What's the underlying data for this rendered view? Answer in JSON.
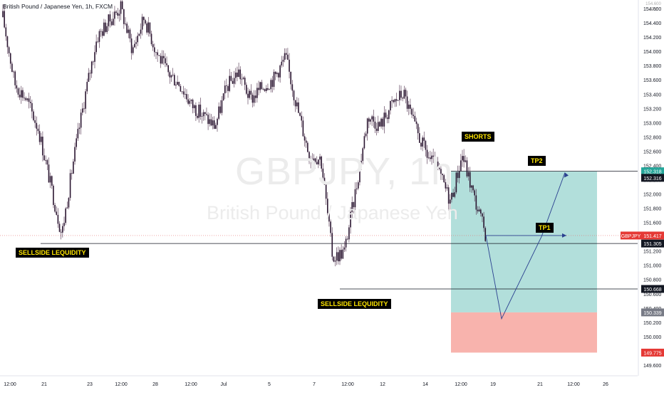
{
  "symbol": {
    "title": "British Pound / Japanese Yen, 1h, FXCM",
    "ccy_price": "154.600",
    "currency": "JPY"
  },
  "watermark": {
    "ticker": "GBPJPY, 1h",
    "name": "British Pound / Japanese Yen"
  },
  "annotations": {
    "sellside_1": "SELLSIDE LEQUIDITY",
    "sellside_2": "SELLSIDE LEQUIDITY",
    "shorts": "SHORTS",
    "tp1": "TP1",
    "tp2": "TP2"
  },
  "colors": {
    "candle": "#2a1530",
    "wick": "#4a2a46",
    "accent_teal": "#26a69a",
    "accent_red": "#e53935",
    "path_blue": "#2a3f8f",
    "profit_zone": "#b2dfdb",
    "loss_zone": "#f8b3ad"
  },
  "chart_data": {
    "type": "candlestick",
    "timeframe": "1h",
    "x_ticks": [
      "12:00",
      "21",
      "23",
      "12:00",
      "28",
      "12:00",
      "Jul",
      "5",
      "7",
      "12:00",
      "12",
      "14",
      "12:00",
      "19",
      "21",
      "12:00",
      "26"
    ],
    "y_ticks": [
      154.6,
      154.4,
      154.2,
      154.0,
      153.8,
      153.6,
      153.4,
      153.2,
      153.0,
      152.8,
      152.6,
      152.4,
      152.2,
      152.0,
      151.8,
      151.6,
      151.4,
      151.2,
      151.0,
      150.8,
      150.6,
      150.4,
      150.2,
      150.0,
      149.8,
      149.6
    ],
    "y_range": [
      149.45,
      154.72
    ],
    "price_path": [
      {
        "x": "12:00",
        "y": 154.48
      },
      {
        "x": "",
        "y": 153.55
      },
      {
        "x": "",
        "y": 153.33
      },
      {
        "x": "",
        "y": 152.92
      },
      {
        "x": "",
        "y": 152.17
      },
      {
        "x": "21",
        "y": 151.43
      },
      {
        "x": "",
        "y": 152.48
      },
      {
        "x": "",
        "y": 153.4
      },
      {
        "x": "",
        "y": 154.2
      },
      {
        "x": "23",
        "y": 154.42
      },
      {
        "x": "",
        "y": 154.62
      },
      {
        "x": "12:00",
        "y": 154.02
      },
      {
        "x": "",
        "y": 154.48
      },
      {
        "x": "",
        "y": 154.0
      },
      {
        "x": "",
        "y": 153.7
      },
      {
        "x": "28",
        "y": 153.55
      },
      {
        "x": "",
        "y": 153.25
      },
      {
        "x": "12:00",
        "y": 153.1
      },
      {
        "x": "",
        "y": 152.95
      },
      {
        "x": "",
        "y": 153.5
      },
      {
        "x": "Jul",
        "y": 153.72
      },
      {
        "x": "",
        "y": 153.32
      },
      {
        "x": "",
        "y": 153.5
      },
      {
        "x": "5",
        "y": 153.62
      },
      {
        "x": "",
        "y": 153.92
      },
      {
        "x": "",
        "y": 153.2
      },
      {
        "x": "",
        "y": 152.55
      },
      {
        "x": "7",
        "y": 152.5
      },
      {
        "x": "",
        "y": 151.1
      },
      {
        "x": "12:00",
        "y": 151.2
      },
      {
        "x": "",
        "y": 152.1
      },
      {
        "x": "",
        "y": 153.1
      },
      {
        "x": "12",
        "y": 152.95
      },
      {
        "x": "",
        "y": 153.25
      },
      {
        "x": "",
        "y": 153.42
      },
      {
        "x": "",
        "y": 152.92
      },
      {
        "x": "14",
        "y": 152.55
      },
      {
        "x": "",
        "y": 152.3
      },
      {
        "x": "12:00",
        "y": 151.9
      },
      {
        "x": "",
        "y": 152.55
      },
      {
        "x": "",
        "y": 151.95
      },
      {
        "x": "",
        "y": 151.42
      }
    ],
    "horizontal_levels": [
      {
        "label": "SELLSIDE LEQUIDITY",
        "price": 151.305
      },
      {
        "label": "SELLSIDE LEQUIDITY",
        "price": 150.668
      }
    ],
    "price_labels": [
      {
        "value": "152.318",
        "price": 152.318,
        "color": "#26a69a"
      },
      {
        "value": "152.316",
        "price": 152.316,
        "color": "#131722"
      },
      {
        "value": "GBPJPY",
        "price": 151.417,
        "color": "#e53935"
      },
      {
        "value": "151.417",
        "price": 151.417,
        "color": "#e53935"
      },
      {
        "value": "151.305",
        "price": 151.305,
        "color": "#131722"
      },
      {
        "value": "150.668",
        "price": 150.668,
        "color": "#131722"
      },
      {
        "value": "150.339",
        "price": 150.339,
        "color": "#787b86"
      },
      {
        "value": "149.775",
        "price": 149.775,
        "color": "#e53935"
      }
    ],
    "position": {
      "type": "short",
      "entry": 150.339,
      "target": 152.318,
      "stop": 149.775,
      "profit_color": "#b2dfdb",
      "loss_color": "#f8b3ad"
    },
    "projection_path": [
      151.417,
      150.25,
      151.4,
      152.3
    ]
  }
}
